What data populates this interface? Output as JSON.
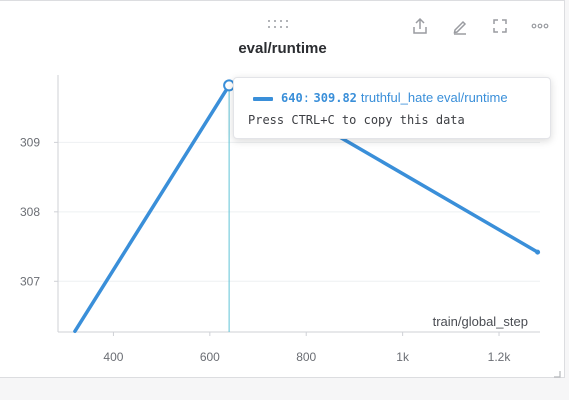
{
  "panel": {
    "title": "eval/runtime",
    "icons": [
      "drag-handle-icon",
      "share-icon",
      "edit-icon",
      "fullscreen-icon",
      "more-icon"
    ]
  },
  "tooltip": {
    "x_value": "640",
    "separator": ":",
    "y_value": "309.82",
    "series_label": "truthful_hate eval/runtime",
    "hint": "Press CTRL+C to copy this data"
  },
  "colors": {
    "series": "#3a8fd9",
    "hover_line": "#5fc3d6",
    "axis": "#cfd1d6",
    "grid": "#eef0f2"
  },
  "chart_data": {
    "type": "line",
    "title": "eval/runtime",
    "xlabel": "train/global_step",
    "ylabel": "",
    "x_ticks": [
      400,
      600,
      800,
      1000,
      1200
    ],
    "x_tick_labels": [
      "400",
      "600",
      "800",
      "1k",
      "1.2k"
    ],
    "y_ticks": [
      307,
      308,
      309
    ],
    "y_tick_labels": [
      "307",
      "308",
      "309"
    ],
    "xlim": [
      285,
      1285
    ],
    "ylim": [
      306.27,
      309.97
    ],
    "series": [
      {
        "name": "truthful_hate eval/runtime",
        "x": [
          320,
          640,
          680,
          1280
        ],
        "y": [
          306.28,
          309.82,
          309.84,
          307.42
        ]
      }
    ],
    "hover": {
      "x": 640,
      "y": 309.82
    },
    "grid": true
  }
}
